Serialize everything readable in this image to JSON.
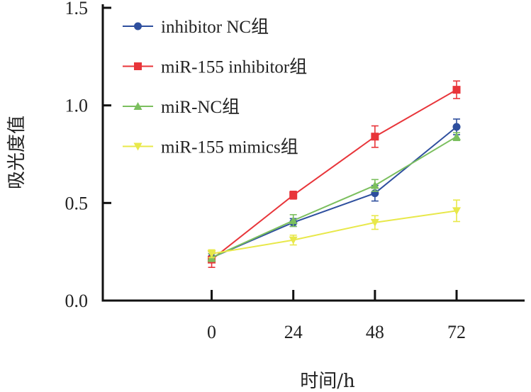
{
  "chart_data": {
    "type": "line",
    "title": "",
    "xlabel": "时间/h",
    "ylabel": "吸光度值",
    "x": [
      0,
      24,
      48,
      72
    ],
    "xticks": [
      "0",
      "24",
      "48",
      "72"
    ],
    "yticks": [
      "0.0",
      "0.5",
      "1.0",
      "1.5"
    ],
    "ylim": [
      0,
      1.5
    ],
    "xlim": [
      -32,
      92
    ],
    "grid": false,
    "legend_position": "top-left",
    "series": [
      {
        "name": "inhibitor NC组",
        "color": "#2e4f9e",
        "marker": "circle",
        "values": [
          0.22,
          0.4,
          0.55,
          0.89
        ],
        "errors": [
          0.02,
          0.02,
          0.04,
          0.04
        ]
      },
      {
        "name": "miR-155 inhibitor组",
        "color": "#e8353a",
        "marker": "square",
        "values": [
          0.21,
          0.54,
          0.84,
          1.08
        ],
        "errors": [
          0.04,
          0.02,
          0.055,
          0.045
        ]
      },
      {
        "name": "miR-NC组",
        "color": "#7bbf5e",
        "marker": "triangle-up",
        "values": [
          0.22,
          0.41,
          0.59,
          0.84
        ],
        "errors": [
          0.02,
          0.03,
          0.03,
          0.02
        ]
      },
      {
        "name": "miR-155 mimics组",
        "color": "#e8e84a",
        "marker": "triangle-down",
        "values": [
          0.24,
          0.31,
          0.4,
          0.46
        ],
        "errors": [
          0.02,
          0.025,
          0.035,
          0.055
        ]
      }
    ]
  }
}
